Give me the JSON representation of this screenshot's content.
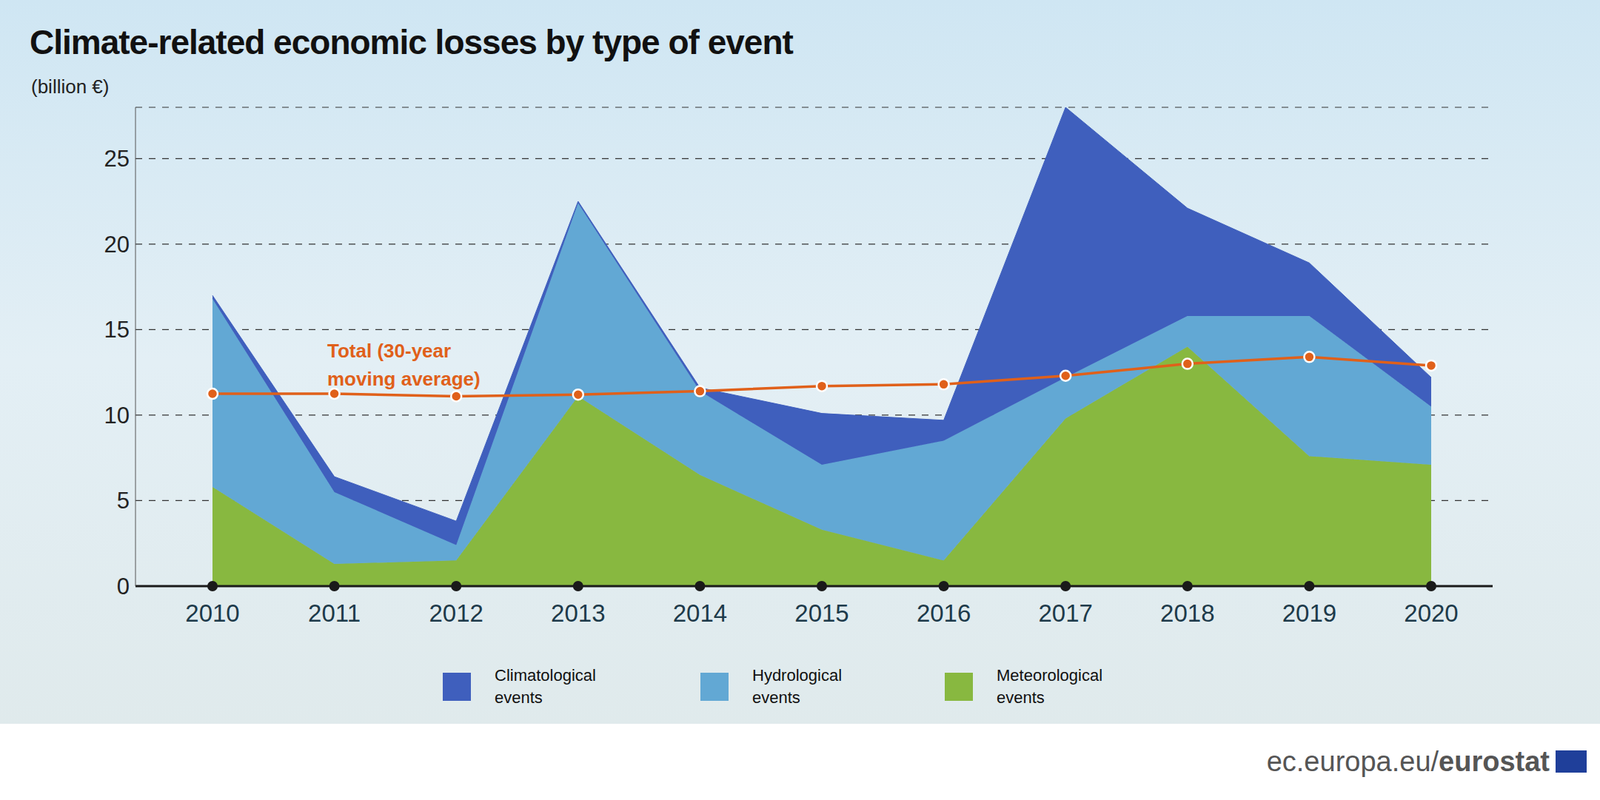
{
  "chart_data": {
    "type": "area",
    "title": "Climate-related economic losses by type of event",
    "subtitle": "(billion €)",
    "categories": [
      "2010",
      "2011",
      "2012",
      "2013",
      "2014",
      "2015",
      "2016",
      "2017",
      "2018",
      "2019",
      "2020"
    ],
    "stacked": true,
    "grid": true,
    "ylim": [
      0,
      28
    ],
    "yticks": [
      0,
      5,
      10,
      15,
      20,
      25
    ],
    "series": [
      {
        "name": "Climatological events",
        "color": "#3f5fbd",
        "values": [
          0.2,
          0.9,
          1.4,
          0.1,
          0.2,
          3.0,
          1.2,
          15.8,
          6.3,
          3.1,
          1.7
        ]
      },
      {
        "name": "Hydrological events",
        "color": "#62a8d4",
        "values": [
          11.0,
          4.2,
          0.9,
          11.3,
          4.9,
          3.8,
          7.0,
          2.4,
          1.8,
          8.2,
          3.4
        ]
      },
      {
        "name": "Meteorological events",
        "color": "#88b840",
        "values": [
          5.8,
          1.3,
          1.5,
          11.1,
          6.5,
          3.3,
          1.5,
          9.8,
          14.0,
          7.6,
          7.1
        ]
      },
      {
        "name": "Total (30-year moving average)",
        "type": "line",
        "color": "#e0601a",
        "marker": "circle",
        "values": [
          11.25,
          11.25,
          11.1,
          11.2,
          11.4,
          11.7,
          11.8,
          12.3,
          13.0,
          13.4,
          12.9
        ]
      }
    ],
    "source": "ec.europa.eu/eurostat"
  }
}
